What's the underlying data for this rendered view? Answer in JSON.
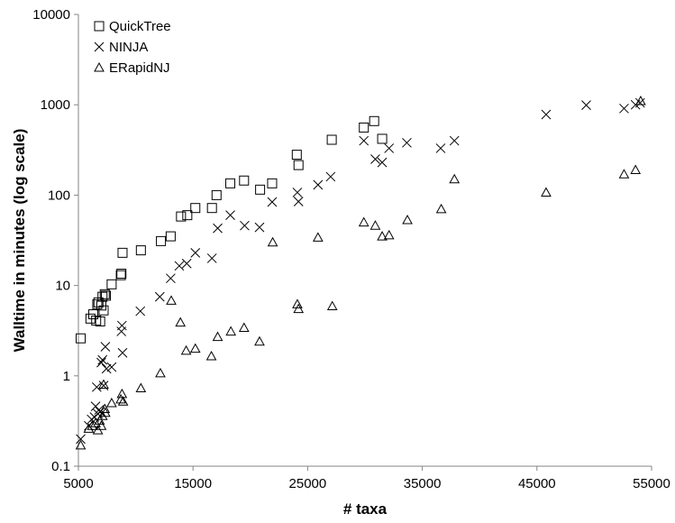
{
  "chart_data": {
    "type": "scatter",
    "title": "",
    "xlabel": "# taxa",
    "ylabel": "Walltime in minutes (log scale)",
    "xlim": [
      5000,
      55000
    ],
    "ylim": [
      0.1,
      10000
    ],
    "y_scale": "log",
    "grid": false,
    "legend_position": "top-left",
    "x_ticks": [
      5000,
      15000,
      25000,
      35000,
      45000,
      55000
    ],
    "x_tick_labels": [
      "5000",
      "15000",
      "25000",
      "35000",
      "45000",
      "55000"
    ],
    "y_ticks": [
      0.1,
      1,
      10,
      100,
      1000,
      10000
    ],
    "y_tick_labels": [
      "0.1",
      "1",
      "10",
      "100",
      "1000",
      "10000"
    ],
    "series": [
      {
        "name": "QuickTree",
        "marker": "square",
        "points": [
          [
            5200,
            2.6
          ],
          [
            6050,
            4.3
          ],
          [
            6300,
            4.8
          ],
          [
            6550,
            4.1
          ],
          [
            6650,
            6.2
          ],
          [
            6750,
            6.5
          ],
          [
            6900,
            4.0
          ],
          [
            7000,
            6.0
          ],
          [
            7100,
            7.5
          ],
          [
            7200,
            5.3
          ],
          [
            7300,
            8.0
          ],
          [
            7400,
            7.7
          ],
          [
            7900,
            10.3
          ],
          [
            8700,
            13.0
          ],
          [
            8750,
            13.5
          ],
          [
            8850,
            23.0
          ],
          [
            10450,
            24.5
          ],
          [
            12200,
            31.0
          ],
          [
            13050,
            35.0
          ],
          [
            13950,
            58.0
          ],
          [
            14500,
            60.0
          ],
          [
            15200,
            72.0
          ],
          [
            16650,
            72.0
          ],
          [
            17050,
            100.0
          ],
          [
            18250,
            135.0
          ],
          [
            19450,
            145.0
          ],
          [
            20850,
            115.0
          ],
          [
            21900,
            135.0
          ],
          [
            24050,
            280.0
          ],
          [
            24200,
            215.0
          ],
          [
            27100,
            410.0
          ],
          [
            29900,
            560.0
          ],
          [
            30800,
            660.0
          ],
          [
            31500,
            420.0
          ]
        ]
      },
      {
        "name": "NINJA",
        "marker": "x",
        "points": [
          [
            5200,
            0.2
          ],
          [
            5900,
            0.28
          ],
          [
            6150,
            0.33
          ],
          [
            6400,
            0.35
          ],
          [
            6500,
            0.46
          ],
          [
            6600,
            0.75
          ],
          [
            6700,
            0.38
          ],
          [
            6800,
            0.42
          ],
          [
            6900,
            0.4
          ],
          [
            7000,
            1.4
          ],
          [
            7100,
            1.5
          ],
          [
            7200,
            0.78
          ],
          [
            7350,
            2.1
          ],
          [
            7450,
            1.2
          ],
          [
            7900,
            1.25
          ],
          [
            8750,
            3.1
          ],
          [
            8800,
            3.6
          ],
          [
            8850,
            1.8
          ],
          [
            10400,
            5.2
          ],
          [
            12100,
            7.5
          ],
          [
            13050,
            12.0
          ],
          [
            13800,
            16.5
          ],
          [
            14450,
            17.5
          ],
          [
            15200,
            23.0
          ],
          [
            16650,
            20.0
          ],
          [
            17150,
            43.0
          ],
          [
            18250,
            60.0
          ],
          [
            19500,
            46.0
          ],
          [
            20800,
            44.0
          ],
          [
            21900,
            84.0
          ],
          [
            24100,
            107.0
          ],
          [
            24200,
            85.0
          ],
          [
            25900,
            130.0
          ],
          [
            27000,
            160.0
          ],
          [
            29900,
            400.0
          ],
          [
            30900,
            250.0
          ],
          [
            31500,
            230.0
          ],
          [
            32100,
            330.0
          ],
          [
            33650,
            380.0
          ],
          [
            36600,
            330.0
          ],
          [
            37800,
            400.0
          ],
          [
            45800,
            780.0
          ],
          [
            49300,
            990.0
          ],
          [
            52600,
            910.0
          ],
          [
            53600,
            1000.0
          ],
          [
            54000,
            1050.0
          ]
        ]
      },
      {
        "name": "ERapidNJ",
        "marker": "triangle",
        "points": [
          [
            5200,
            0.17
          ],
          [
            5900,
            0.26
          ],
          [
            6200,
            0.28
          ],
          [
            6500,
            0.3
          ],
          [
            6700,
            0.25
          ],
          [
            6850,
            0.32
          ],
          [
            7000,
            0.28
          ],
          [
            7100,
            0.36
          ],
          [
            7300,
            0.43
          ],
          [
            7350,
            0.39
          ],
          [
            7200,
            0.8
          ],
          [
            7900,
            0.5
          ],
          [
            8700,
            0.55
          ],
          [
            8800,
            0.63
          ],
          [
            8900,
            0.52
          ],
          [
            10450,
            0.73
          ],
          [
            12150,
            1.07
          ],
          [
            13100,
            6.8
          ],
          [
            13900,
            3.9
          ],
          [
            14400,
            1.9
          ],
          [
            15200,
            2.0
          ],
          [
            16600,
            1.65
          ],
          [
            17150,
            2.7
          ],
          [
            18300,
            3.1
          ],
          [
            19450,
            3.4
          ],
          [
            20800,
            2.4
          ],
          [
            21950,
            30.0
          ],
          [
            24100,
            6.2
          ],
          [
            24200,
            5.5
          ],
          [
            25900,
            34.0
          ],
          [
            27150,
            5.9
          ],
          [
            29900,
            50.0
          ],
          [
            30900,
            46.0
          ],
          [
            31500,
            35.0
          ],
          [
            32100,
            36.0
          ],
          [
            33700,
            53.0
          ],
          [
            36650,
            70.0
          ],
          [
            37800,
            150.0
          ],
          [
            45800,
            107.0
          ],
          [
            52600,
            170.0
          ],
          [
            53600,
            190.0
          ],
          [
            54050,
            1100.0
          ]
        ]
      }
    ]
  }
}
